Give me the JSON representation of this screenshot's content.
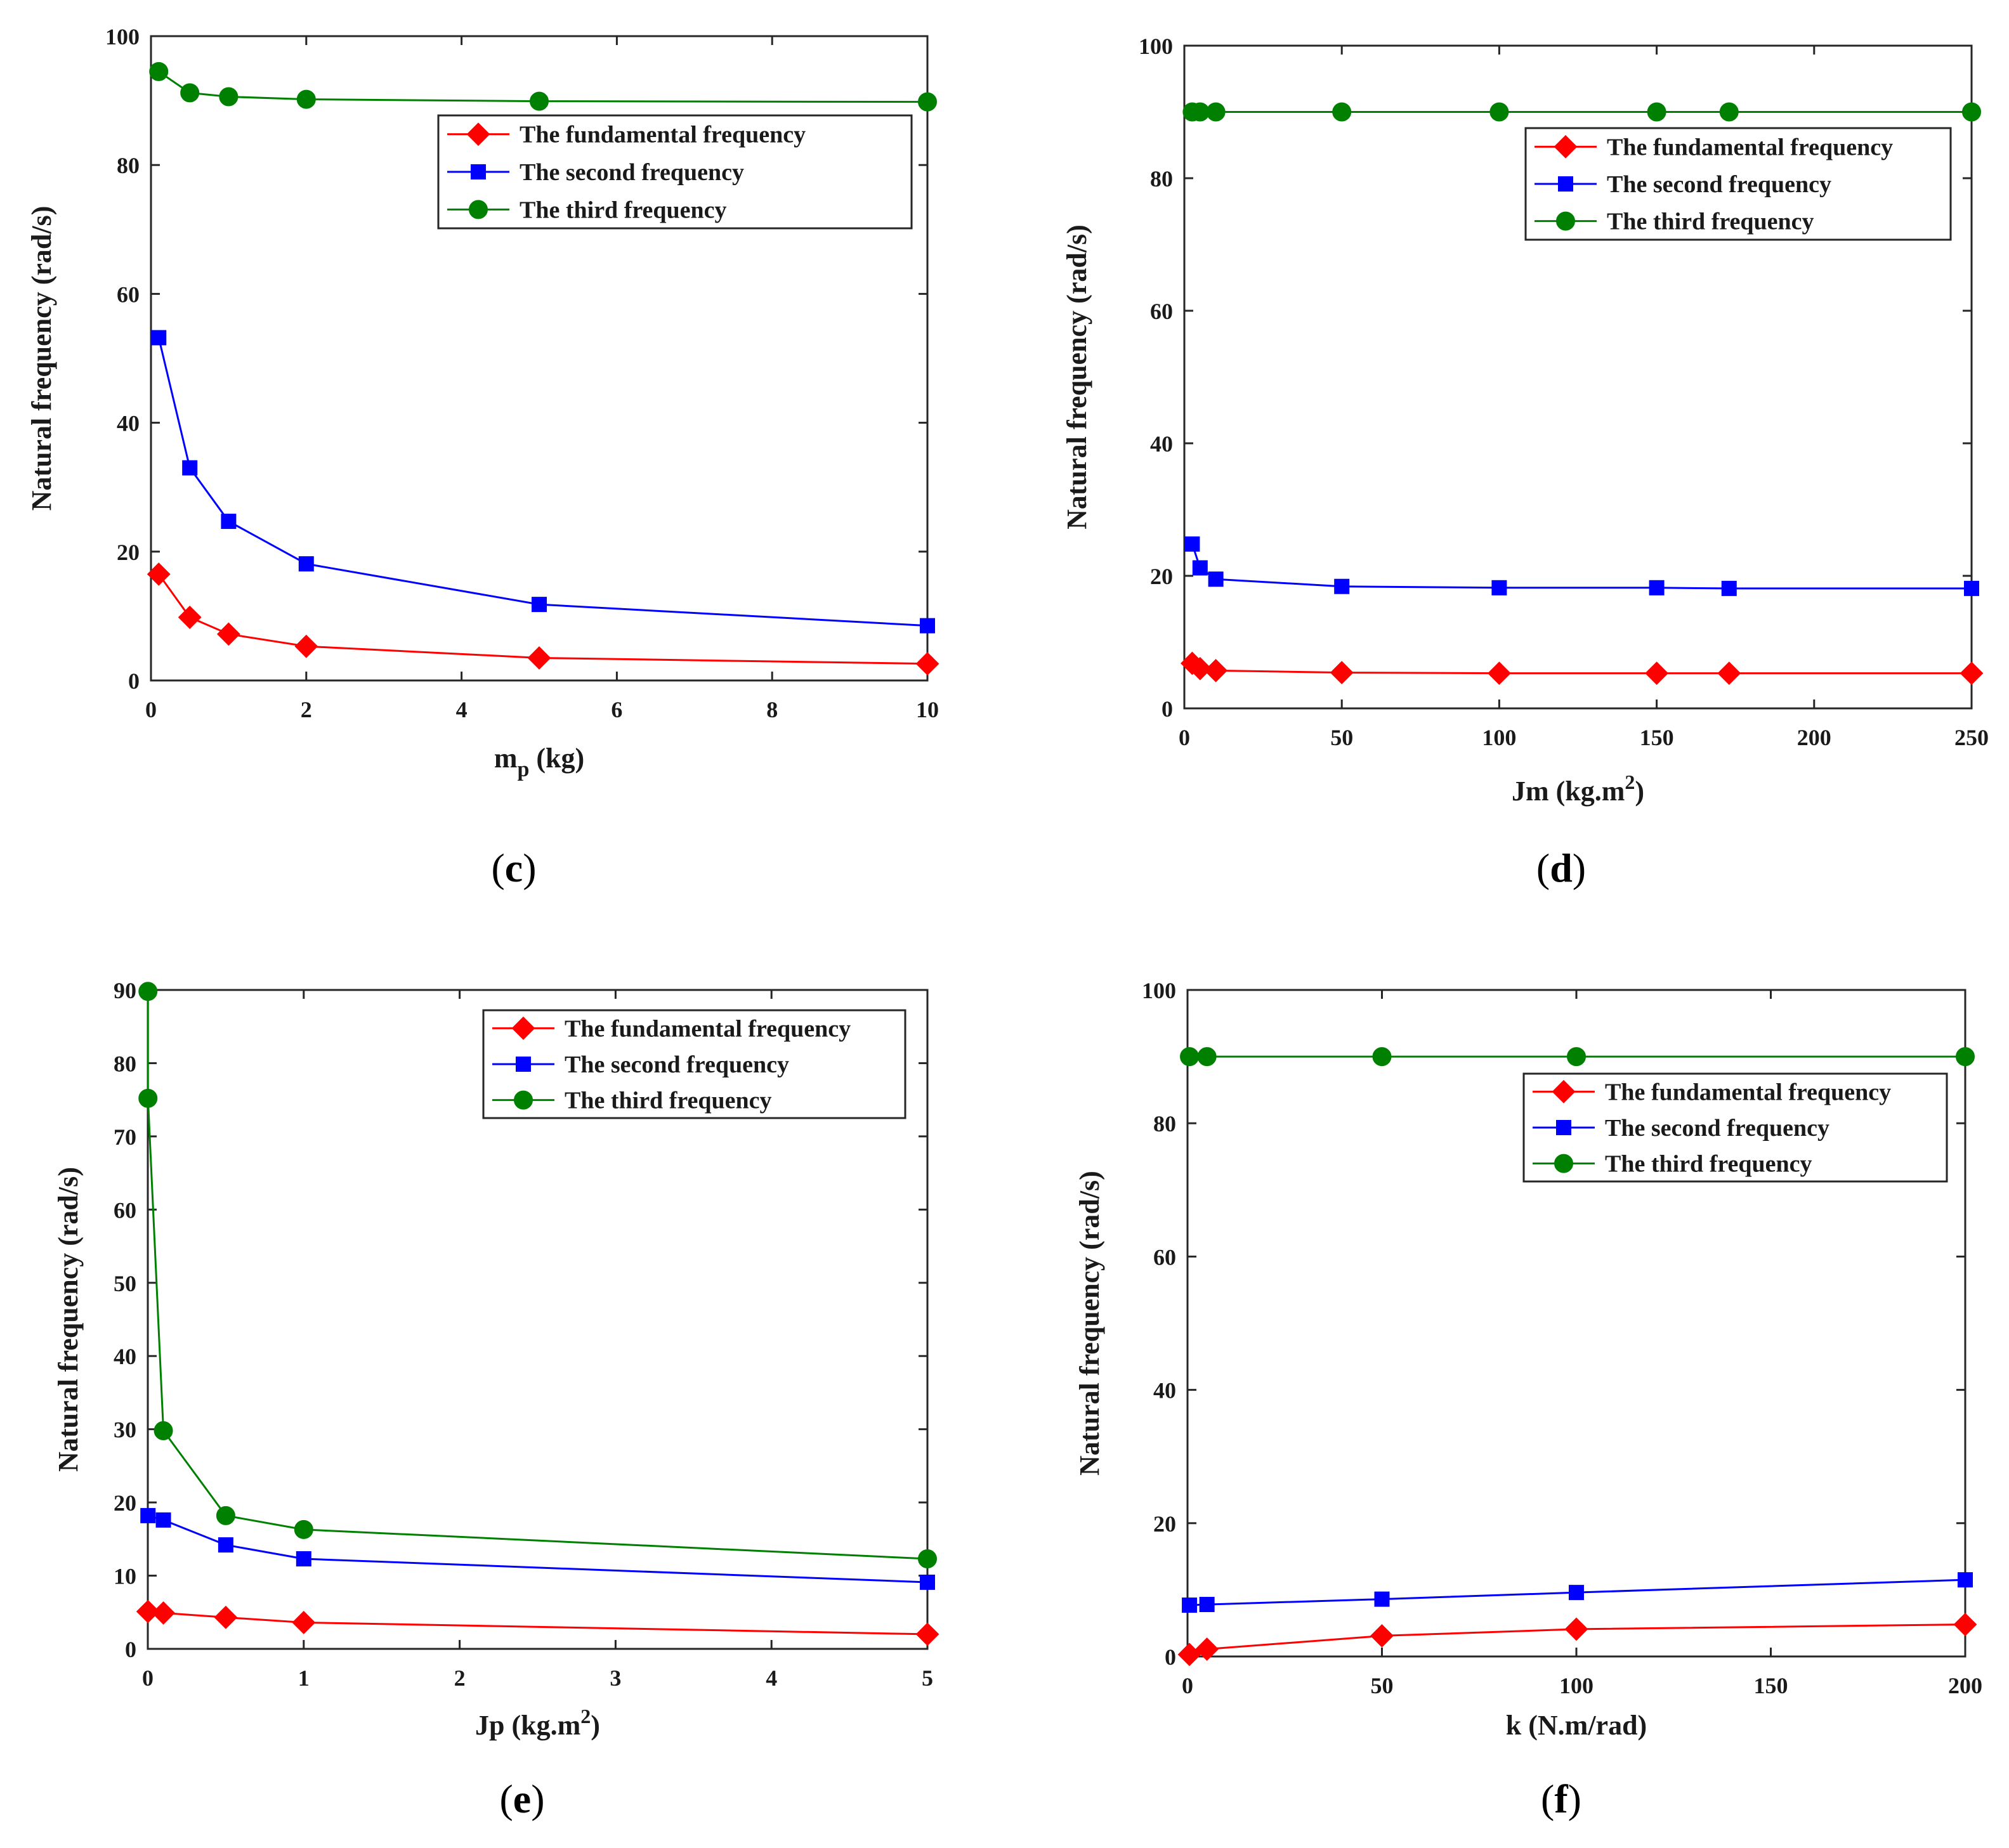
{
  "chart_data": [
    {
      "type": "line",
      "id": "c",
      "caption": "c",
      "xlabel": "m",
      "xlabel_sub": "p",
      "xlabel_unit": " (kg)",
      "xlabel_sup": "",
      "xlabel_tail": "",
      "ylabel": "Natural frequency (rad/s)",
      "xlim": [
        0,
        10
      ],
      "ylim": [
        0,
        100
      ],
      "xticks": [
        0,
        2,
        4,
        6,
        8,
        10
      ],
      "yticks": [
        0,
        20,
        40,
        60,
        80,
        100
      ],
      "legend_position": "top-right",
      "series": [
        {
          "name": "The fundamental frequency",
          "color": "#ff0000",
          "marker": "diamond",
          "x": [
            0.1,
            0.5,
            1,
            2,
            5,
            10
          ],
          "y": [
            16.5,
            9.8,
            7.2,
            5.3,
            3.5,
            2.6
          ]
        },
        {
          "name": "The second frequency",
          "color": "#0000ff",
          "marker": "square",
          "x": [
            0.1,
            0.5,
            1,
            2,
            5,
            10
          ],
          "y": [
            53.2,
            33.0,
            24.7,
            18.1,
            11.8,
            8.5
          ]
        },
        {
          "name": "The third frequency",
          "color": "#008000",
          "marker": "circle",
          "x": [
            0.1,
            0.5,
            1,
            2,
            5,
            10
          ],
          "y": [
            94.5,
            91.2,
            90.6,
            90.2,
            89.9,
            89.8
          ]
        }
      ]
    },
    {
      "type": "line",
      "id": "d",
      "caption": "d",
      "xlabel": "Jm (kg.m",
      "xlabel_sub": "",
      "xlabel_unit": "",
      "xlabel_sup": "2",
      "xlabel_tail": ")",
      "ylabel": "Natural frequency (rad/s)",
      "xlim": [
        0,
        250
      ],
      "ylim": [
        0,
        100
      ],
      "xticks": [
        0,
        50,
        100,
        150,
        200,
        250
      ],
      "yticks": [
        0,
        20,
        40,
        60,
        80,
        100
      ],
      "legend_position": "top-right",
      "series": [
        {
          "name": "The fundamental frequency",
          "color": "#ff0000",
          "marker": "diamond",
          "x": [
            2.5,
            5,
            10,
            50,
            100,
            150,
            173,
            250
          ],
          "y": [
            6.8,
            6.0,
            5.7,
            5.4,
            5.3,
            5.3,
            5.3,
            5.3
          ]
        },
        {
          "name": "The second frequency",
          "color": "#0000ff",
          "marker": "square",
          "x": [
            2.5,
            5,
            10,
            50,
            100,
            150,
            173,
            250
          ],
          "y": [
            24.8,
            21.2,
            19.5,
            18.4,
            18.2,
            18.2,
            18.1,
            18.1
          ]
        },
        {
          "name": "The third frequency",
          "color": "#008000",
          "marker": "circle",
          "x": [
            2.5,
            5,
            10,
            50,
            100,
            150,
            173,
            250
          ],
          "y": [
            90.0,
            90.0,
            90.0,
            90.0,
            90.0,
            90.0,
            90.0,
            90.0
          ]
        }
      ]
    },
    {
      "type": "line",
      "id": "e",
      "caption": "e",
      "xlabel": "Jp (kg.m",
      "xlabel_sub": "",
      "xlabel_unit": "",
      "xlabel_sup": "2",
      "xlabel_tail": ")",
      "ylabel": "Natural frequency (rad/s)",
      "xlim": [
        0,
        5
      ],
      "ylim": [
        0,
        90
      ],
      "xticks": [
        0,
        1,
        2,
        3,
        4,
        5
      ],
      "yticks": [
        0,
        10,
        20,
        30,
        40,
        50,
        60,
        70,
        80,
        90
      ],
      "legend_position": "top-right",
      "series": [
        {
          "name": "The fundamental frequency",
          "color": "#ff0000",
          "marker": "diamond",
          "x": [
            0.001,
            0.1,
            0.5,
            1,
            5
          ],
          "y": [
            5.1,
            4.9,
            4.3,
            3.6,
            2.0
          ]
        },
        {
          "name": "The second frequency",
          "color": "#0000ff",
          "marker": "square",
          "x": [
            0.001,
            0.1,
            0.5,
            1,
            5
          ],
          "y": [
            18.2,
            17.6,
            14.2,
            12.3,
            9.1
          ]
        },
        {
          "name": "The third frequency",
          "color": "#008000",
          "marker": "circle",
          "x": [
            0.001,
            0.001,
            0.1,
            0.5,
            1,
            5
          ],
          "y": [
            89.8,
            75.2,
            29.8,
            18.2,
            16.3,
            12.3
          ]
        }
      ]
    },
    {
      "type": "line",
      "id": "f",
      "caption": "f",
      "xlabel": "k (N.m/rad)",
      "xlabel_sub": "",
      "xlabel_unit": "",
      "xlabel_sup": "",
      "xlabel_tail": "",
      "ylabel": "Natural frequency (rad/s)",
      "xlim": [
        0,
        200
      ],
      "ylim": [
        0,
        100
      ],
      "xticks": [
        0,
        50,
        100,
        150,
        200
      ],
      "yticks": [
        0,
        20,
        40,
        60,
        80,
        100
      ],
      "legend_position": "top-right",
      "series": [
        {
          "name": "The fundamental frequency",
          "color": "#ff0000",
          "marker": "diamond",
          "x": [
            0.5,
            5,
            50,
            100,
            200
          ],
          "y": [
            0.3,
            1.1,
            3.1,
            4.1,
            4.8
          ]
        },
        {
          "name": "The second frequency",
          "color": "#0000ff",
          "marker": "square",
          "x": [
            0.5,
            5,
            50,
            100,
            200
          ],
          "y": [
            7.7,
            7.8,
            8.6,
            9.6,
            11.5
          ]
        },
        {
          "name": "The third frequency",
          "color": "#008000",
          "marker": "circle",
          "x": [
            0.5,
            5,
            50,
            100,
            200
          ],
          "y": [
            90.0,
            90.0,
            90.0,
            90.0,
            90.0
          ]
        }
      ]
    }
  ]
}
